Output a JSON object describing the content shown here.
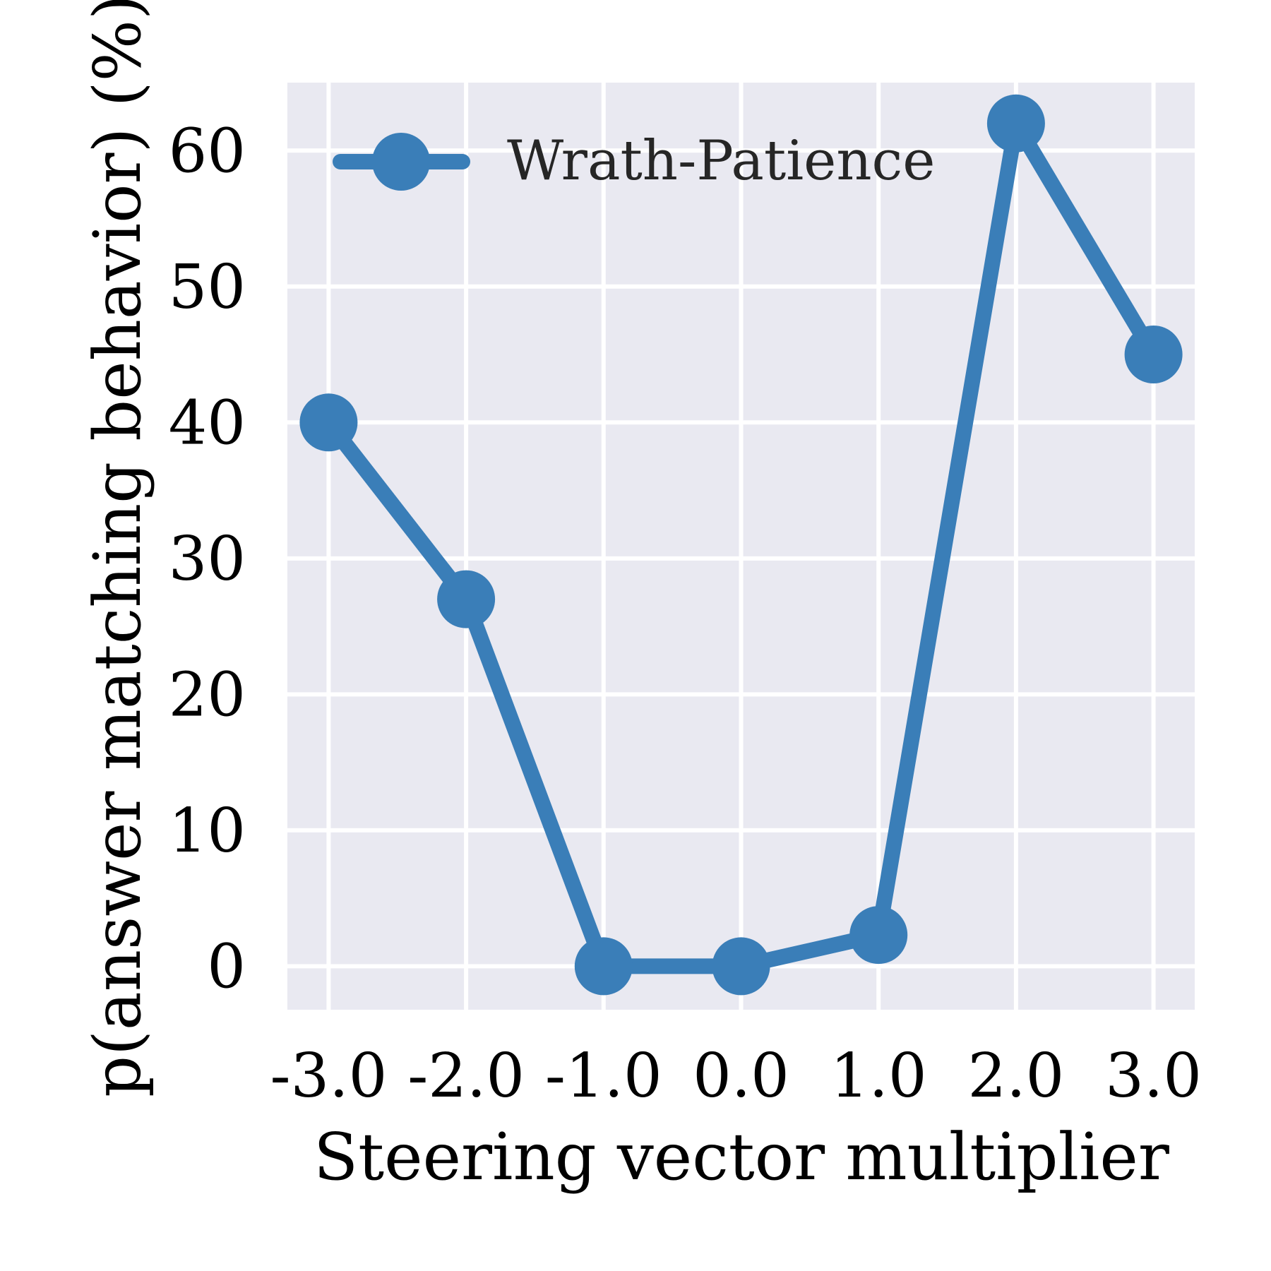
{
  "chart_data": {
    "type": "line",
    "xlabel": "Steering vector multiplier",
    "ylabel": "p(answer matching behavior) (%)",
    "x": [
      -3.0,
      -2.0,
      -1.0,
      0.0,
      1.0,
      2.0,
      3.0
    ],
    "x_tick_labels": [
      "-3.0",
      "-2.0",
      "-1.0",
      "0.0",
      "1.0",
      "2.0",
      "3.0"
    ],
    "y_ticks": [
      0,
      10,
      20,
      30,
      40,
      50,
      60
    ],
    "y_tick_labels": [
      "0",
      "10",
      "20",
      "30",
      "40",
      "50",
      "60"
    ],
    "xlim": [
      -3.3,
      3.3
    ],
    "ylim": [
      -3.2,
      65
    ],
    "grid": true,
    "legend_position": "top-left",
    "series": [
      {
        "name": "Wrath-Patience",
        "color": "#3a7eb8",
        "marker": "circle",
        "values": [
          40,
          27,
          0,
          0,
          2.3,
          62,
          45
        ]
      }
    ]
  },
  "colors": {
    "plot_background": "#e9e9f1",
    "grid": "#ffffff",
    "text": "#000000",
    "legend_text": "#262626"
  }
}
